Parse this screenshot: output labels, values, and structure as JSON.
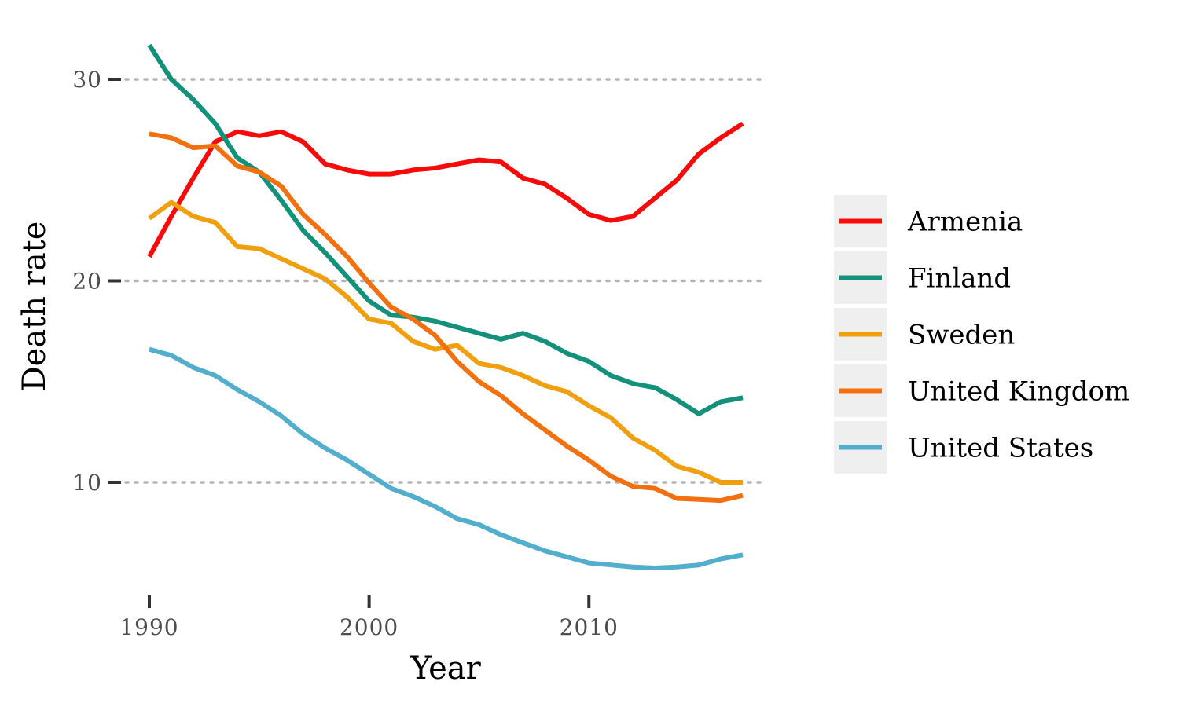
{
  "chart_data": {
    "type": "line",
    "title": "",
    "xlabel": "Year",
    "ylabel": "Death rate",
    "xlim": [
      1990,
      2017
    ],
    "ylim": [
      5,
      32
    ],
    "x_ticks": [
      1990,
      2000,
      2010
    ],
    "y_ticks": [
      10,
      20,
      30
    ],
    "grid": "horizontal dotted at y ticks",
    "legend_position": "right",
    "x": [
      1990,
      1991,
      1992,
      1993,
      1994,
      1995,
      1996,
      1997,
      1998,
      1999,
      2000,
      2001,
      2002,
      2003,
      2004,
      2005,
      2006,
      2007,
      2008,
      2009,
      2010,
      2011,
      2012,
      2013,
      2014,
      2015,
      2016,
      2017
    ],
    "series": [
      {
        "name": "Armenia",
        "color": "#f70a0a",
        "values": [
          21.2,
          23.2,
          25.1,
          26.9,
          27.4,
          27.2,
          27.4,
          26.9,
          25.8,
          25.5,
          25.3,
          25.3,
          25.5,
          25.6,
          25.8,
          26.0,
          25.9,
          25.1,
          24.8,
          24.1,
          23.3,
          23.0,
          23.2,
          24.1,
          25.0,
          26.3,
          27.1,
          27.8
        ]
      },
      {
        "name": "Finland",
        "color": "#14917a",
        "values": [
          31.7,
          30.0,
          29.0,
          27.8,
          26.1,
          25.4,
          24.0,
          22.5,
          21.4,
          20.2,
          19.0,
          18.3,
          18.2,
          18.0,
          17.7,
          17.4,
          17.1,
          17.4,
          17.0,
          16.4,
          16.0,
          15.3,
          14.9,
          14.7,
          14.1,
          13.4,
          14.0,
          14.2
        ]
      },
      {
        "name": "Sweden",
        "color": "#f0a00f",
        "values": [
          23.1,
          23.9,
          23.2,
          22.9,
          21.7,
          21.6,
          21.1,
          20.6,
          20.1,
          19.2,
          18.1,
          17.9,
          17.0,
          16.6,
          16.8,
          15.9,
          15.7,
          15.3,
          14.8,
          14.5,
          13.8,
          13.2,
          12.2,
          11.6,
          10.8,
          10.5,
          10.0,
          10.0
        ]
      },
      {
        "name": "United Kingdom",
        "color": "#f2700f",
        "values": [
          27.3,
          27.1,
          26.6,
          26.7,
          25.7,
          25.4,
          24.7,
          23.3,
          22.3,
          21.2,
          19.9,
          18.7,
          18.1,
          17.3,
          16.0,
          15.0,
          14.3,
          13.4,
          12.6,
          11.8,
          11.1,
          10.3,
          9.8,
          9.7,
          9.2,
          9.15,
          9.1,
          9.35
        ]
      },
      {
        "name": "United States",
        "color": "#52aecc",
        "values": [
          16.6,
          16.3,
          15.7,
          15.3,
          14.6,
          14.0,
          13.3,
          12.4,
          11.7,
          11.1,
          10.4,
          9.7,
          9.3,
          8.8,
          8.2,
          7.9,
          7.4,
          7.0,
          6.6,
          6.3,
          6.0,
          5.9,
          5.8,
          5.75,
          5.8,
          5.9,
          6.2,
          6.4
        ]
      }
    ]
  }
}
